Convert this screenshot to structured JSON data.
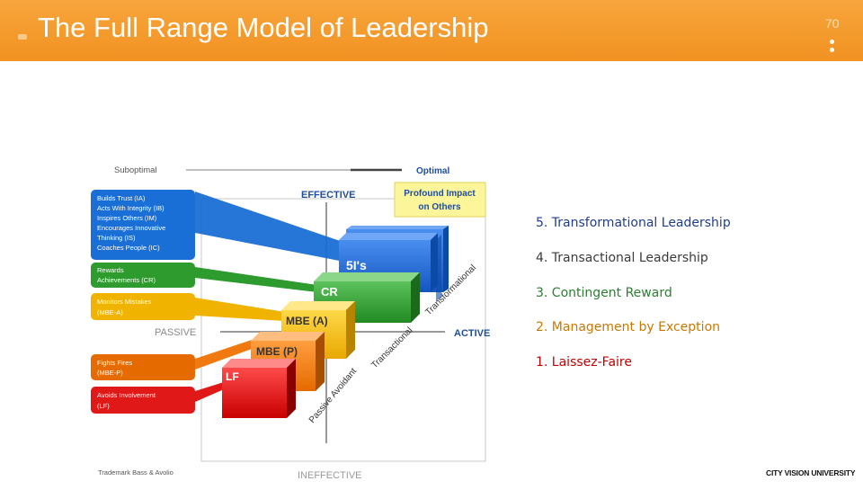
{
  "slide": {
    "title": "The Full Range Model of Leadership",
    "number": "70",
    "brand": "CITY VISION UNIVERSITY",
    "accent_color": "#f29222"
  },
  "diagram": {
    "axis": {
      "suboptimal": "Suboptimal",
      "optimal": "Optimal",
      "effective": "EFFECTIVE",
      "ineffective": "INEFFECTIVE",
      "passive": "PASSIVE",
      "active": "ACTIVE",
      "profound_line1": "Profound Impact",
      "profound_line2": "on Others",
      "credit": "Trademark Bass & Avolio"
    },
    "behaviors": [
      {
        "lines": [
          "Builds Trust (IA)",
          "Acts With Integrity (IB)",
          "Inspires Others (IM)",
          "Encourages Innovative",
          "Thinking (IS)",
          "Coaches People (IC)"
        ],
        "color": "#1a6fd6"
      },
      {
        "lines": [
          "Rewards",
          "Achievements (CR)"
        ],
        "color": "#2e9b2e"
      },
      {
        "lines": [
          "Monitors Mistakes",
          "(MBE-A)"
        ],
        "color": "#f0b400"
      },
      {
        "lines": [
          "Fights Fires",
          "(MBE-P)"
        ],
        "color": "#f07a10"
      },
      {
        "lines": [
          "Avoids Involvement",
          "(LF)"
        ],
        "color": "#e01818"
      }
    ],
    "blocks": [
      {
        "label": "5I's",
        "color": "#1a6fd6"
      },
      {
        "label": "CR",
        "color": "#2e9b2e"
      },
      {
        "label": "MBE (A)",
        "color": "#f0b400"
      },
      {
        "label": "MBE (P)",
        "color": "#f07a10"
      },
      {
        "label": "LF",
        "color": "#e01818"
      }
    ],
    "diagonal": {
      "passive_avoidant": "Passive Avoidant",
      "transactional": "Transactional",
      "transformational": "Transformational"
    }
  },
  "list": [
    {
      "text": "5. Transformational Leadership",
      "color": "#1f3d8a"
    },
    {
      "text": "4. Transactional Leadership",
      "color": "#3b3b3b"
    },
    {
      "text": "3. Contingent Reward",
      "color": "#2e7d32"
    },
    {
      "text": "2. Management by Exception",
      "color": "#c87800"
    },
    {
      "text": "1. Laissez-Faire",
      "color": "#c00000"
    }
  ]
}
